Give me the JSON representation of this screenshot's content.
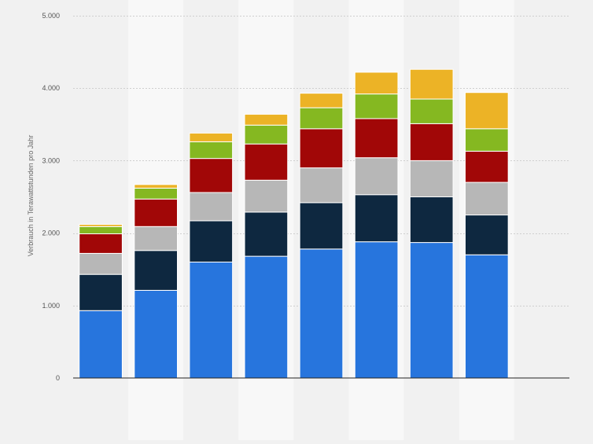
{
  "chart_data": {
    "type": "bar",
    "stacked": true,
    "ylabel": "Verbrauch in Terawattstunden pro Jahr",
    "ylim": [
      0,
      5000
    ],
    "y_ticks": [
      0,
      1000,
      2000,
      3000,
      4000,
      5000
    ],
    "y_tick_labels": [
      "0",
      "1.000",
      "2.000",
      "3.000",
      "4.000",
      "5.000"
    ],
    "grid": true,
    "categories": [
      "",
      "",
      "",
      "",
      "",
      "",
      "",
      "",
      ""
    ],
    "series": [
      {
        "color": "#2775dd",
        "values": [
          930,
          1210,
          1600,
          1680,
          1780,
          1880,
          1870,
          1700,
          0
        ]
      },
      {
        "color": "#0e2840",
        "values": [
          500,
          550,
          570,
          610,
          640,
          650,
          630,
          550,
          0
        ]
      },
      {
        "color": "#b7b7b7",
        "values": [
          290,
          330,
          390,
          440,
          480,
          510,
          500,
          450,
          0
        ]
      },
      {
        "color": "#a10707",
        "values": [
          270,
          380,
          470,
          500,
          540,
          540,
          510,
          430,
          0
        ]
      },
      {
        "color": "#85b821",
        "values": [
          100,
          150,
          230,
          260,
          290,
          340,
          340,
          310,
          0
        ]
      },
      {
        "color": "#ecb326",
        "values": [
          30,
          50,
          120,
          150,
          200,
          300,
          410,
          500,
          0
        ]
      }
    ]
  }
}
